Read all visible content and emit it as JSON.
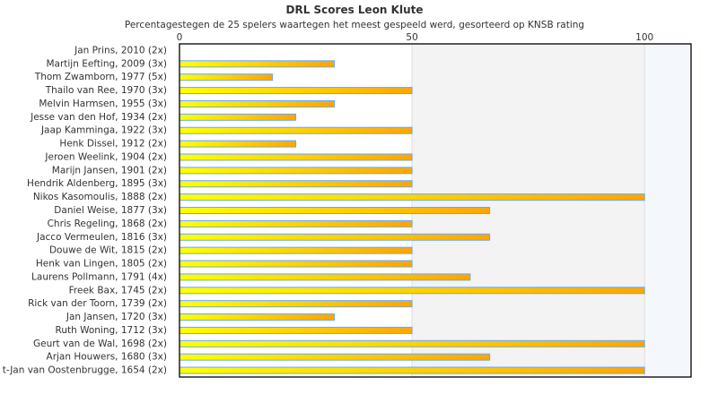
{
  "chart_data": {
    "type": "bar",
    "orientation": "horizontal",
    "title": "DRL Scores Leon Klute",
    "subtitle": "Percentagestegen de 25 spelers waartegen het meest gespeeld werd, gesorteerd op KNSB rating",
    "xlim": [
      0,
      110
    ],
    "xticks": [
      "0",
      "50",
      "100"
    ],
    "categories": [
      "Jan Prins, 2010 (2x)",
      "Martijn Eefting, 2009 (3x)",
      "Thom Zwamborn, 1977 (5x)",
      "Thailo van Ree, 1970 (3x)",
      "Melvin Harmsen, 1955 (3x)",
      "Jesse van den Hof, 1934 (2x)",
      "Jaap Kamminga, 1922 (3x)",
      "Henk Dissel, 1912 (2x)",
      "Jeroen Weelink, 1904 (2x)",
      "Marijn Jansen, 1901 (2x)",
      "Hendrik Aldenberg, 1895 (3x)",
      "Nikos Kasomoulis, 1888 (2x)",
      "Daniel Weise, 1877 (3x)",
      "Chris Regeling, 1868 (2x)",
      "Jacco Vermeulen, 1816 (3x)",
      "Douwe de Wit, 1815 (2x)",
      "Henk van Lingen, 1805 (2x)",
      "Laurens Pollmann, 1791 (4x)",
      "Freek Bax, 1745 (2x)",
      "Rick van der Toorn, 1739 (2x)",
      "Jan Jansen, 1720 (3x)",
      "Ruth Woning, 1712 (3x)",
      "Geurt van de Wal, 1698 (2x)",
      "Arjan Houwers, 1680 (3x)",
      "t-Jan van Oostenbrugge, 1654 (2x)"
    ],
    "values": [
      0,
      33.3,
      20,
      50,
      33.3,
      25,
      50,
      25,
      50,
      50,
      50,
      100,
      66.7,
      50,
      66.7,
      50,
      50,
      62.5,
      100,
      50,
      33.3,
      50,
      100,
      66.7,
      100
    ],
    "colors": {
      "bar_start": "#ffff00",
      "bar_end": "#ffa500",
      "bar_border": "#66aaee",
      "band_mid": "#f3f3f3",
      "band_high": "#f4f8fc"
    }
  }
}
